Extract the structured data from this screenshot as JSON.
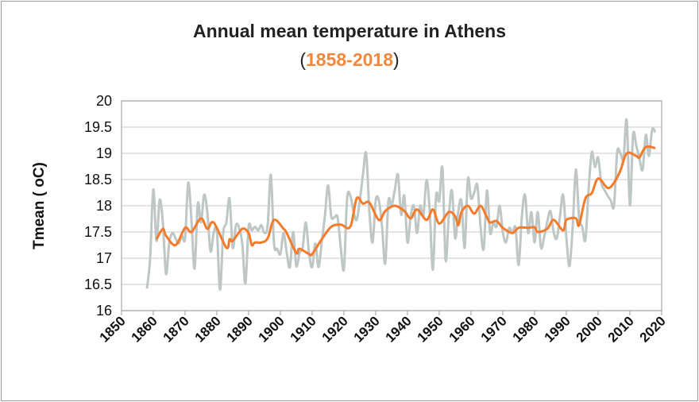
{
  "chart_data": {
    "type": "line",
    "title": "Annual mean temperature in Athens",
    "subtitle": "1858-2018",
    "xlabel": "",
    "ylabel": "Tmean ( oC)",
    "xlim": [
      1850,
      2020
    ],
    "ylim": [
      16,
      20
    ],
    "xticks": [
      "1850",
      "1860",
      "1870",
      "1880",
      "1890",
      "1900",
      "1910",
      "1920",
      "1930",
      "1940",
      "1950",
      "1960",
      "1970",
      "1980",
      "1990",
      "2000",
      "2010",
      "2020"
    ],
    "yticks": [
      "16",
      "16.5",
      "17",
      "17.5",
      "18",
      "18.5",
      "19",
      "19.5",
      "20"
    ],
    "grid": "horizontal",
    "colors": {
      "annual": "#bfc6c6",
      "smoothed": "#f47b2a",
      "subtitle": "#f0883e"
    },
    "series": [
      {
        "x_start": 1858,
        "values": [
          16.42,
          17.0,
          18.31,
          17.33,
          18.11,
          17.68,
          16.7,
          17.28,
          17.48,
          17.38,
          17.28,
          17.43,
          17.38,
          18.44,
          17.73,
          16.8,
          18.04,
          17.68,
          18.21,
          17.88,
          17.13,
          17.48,
          17.53,
          16.4,
          17.48,
          17.68,
          18.14,
          17.2,
          17.63,
          17.58,
          17.28,
          16.52,
          17.6,
          17.53,
          17.6,
          17.53,
          17.63,
          17.48,
          17.63,
          18.59,
          17.28,
          17.18,
          17.08,
          17.48,
          17.1,
          16.83,
          17.5,
          16.85,
          17.1,
          17.2,
          17.68,
          17.1,
          16.83,
          17.28,
          16.83,
          17.3,
          17.8,
          18.39,
          17.8,
          17.78,
          17.78,
          17.2,
          16.8,
          18.14,
          18.19,
          17.9,
          17.73,
          18.1,
          18.6,
          19.0,
          17.9,
          17.3,
          18.1,
          18.1,
          17.6,
          16.9,
          18.09,
          18.0,
          18.3,
          18.59,
          17.83,
          18.19,
          17.3,
          17.8,
          18.0,
          17.48,
          18.0,
          17.8,
          18.49,
          17.9,
          16.78,
          18.19,
          18.09,
          18.72,
          16.96,
          17.8,
          18.29,
          17.38,
          17.9,
          18.09,
          17.2,
          18.51,
          18.14,
          18.25,
          18.39,
          17.6,
          17.18,
          18.29,
          17.48,
          17.68,
          17.6,
          18.0,
          17.5,
          17.3,
          17.58,
          17.48,
          17.58,
          16.87,
          17.8,
          18.21,
          17.48,
          17.88,
          17.3,
          17.88,
          17.2,
          17.4,
          17.7,
          17.9,
          17.5,
          17.38,
          17.8,
          18.21,
          17.4,
          16.85,
          17.6,
          18.69,
          17.78,
          17.6,
          17.35,
          18.3,
          19.02,
          18.74,
          18.92,
          18.44,
          18.3,
          18.19,
          18.1,
          18.0,
          19.02,
          19.0,
          18.9,
          19.63,
          18.01,
          19.35,
          19.15,
          18.9,
          18.69,
          19.35,
          18.95,
          19.45,
          19.4
        ]
      },
      {
        "x": [
          1861,
          1863,
          1864,
          1867,
          1870,
          1872,
          1875,
          1877,
          1879,
          1883,
          1884,
          1885,
          1888,
          1890,
          1891,
          1892,
          1894,
          1896,
          1898,
          1901,
          1902,
          1905,
          1906,
          1909,
          1910,
          1913,
          1916,
          1919,
          1922,
          1924,
          1926,
          1928,
          1931,
          1933,
          1936,
          1939,
          1941,
          1943,
          1946,
          1948,
          1950,
          1953,
          1955,
          1956,
          1957,
          1959,
          1961,
          1963,
          1965,
          1966,
          1968,
          1970,
          1973,
          1975,
          1978,
          1980,
          1981,
          1984,
          1986,
          1989,
          1990,
          1993,
          1994,
          1996,
          1998,
          2000,
          2003,
          2005,
          2007,
          2009,
          2012,
          2013,
          2015,
          2018
        ],
        "values": [
          17.36,
          17.56,
          17.43,
          17.25,
          17.58,
          17.5,
          17.76,
          17.56,
          17.68,
          17.2,
          17.36,
          17.33,
          17.56,
          17.48,
          17.25,
          17.3,
          17.3,
          17.38,
          17.73,
          17.56,
          17.48,
          17.1,
          17.18,
          17.08,
          17.08,
          17.36,
          17.6,
          17.64,
          17.6,
          18.14,
          18.04,
          18.06,
          17.73,
          17.9,
          18.0,
          17.9,
          17.76,
          17.93,
          17.73,
          17.93,
          17.66,
          17.88,
          17.8,
          17.63,
          17.88,
          18.0,
          17.85,
          18.0,
          17.78,
          17.68,
          17.71,
          17.58,
          17.48,
          17.58,
          17.58,
          17.59,
          17.5,
          17.56,
          17.73,
          17.53,
          17.73,
          17.76,
          17.63,
          18.14,
          18.24,
          18.52,
          18.34,
          18.44,
          18.67,
          19.0,
          18.95,
          18.92,
          19.12,
          19.1
        ]
      }
    ]
  }
}
